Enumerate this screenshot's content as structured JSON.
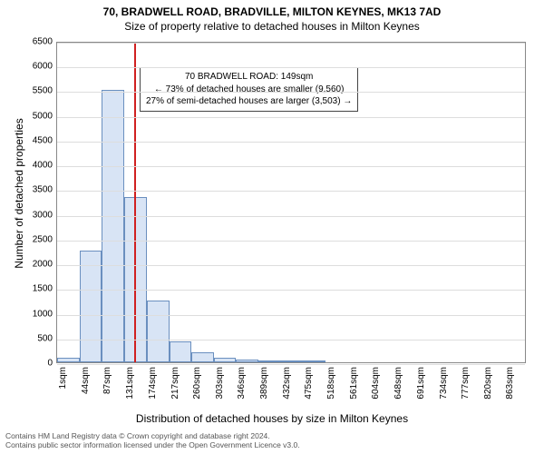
{
  "chart": {
    "type": "histogram",
    "title_line1": "70, BRADWELL ROAD, BRADVILLE, MILTON KEYNES, MK13 7AD",
    "title_line2": "Size of property relative to detached houses in Milton Keynes",
    "title_fontsize": 12,
    "xlabel": "Distribution of detached houses by size in Milton Keynes",
    "ylabel": "Number of detached properties",
    "label_fontsize": 12,
    "tick_fontsize": 10,
    "background_color": "#ffffff",
    "plot_border_color": "#888888",
    "grid_color": "#dddddd",
    "bar_fill": "#d8e4f5",
    "bar_border": "#6a8fbf",
    "marker_color": "#d02020",
    "ylim": [
      0,
      6500
    ],
    "ytick_step": 500,
    "yticks": [
      0,
      500,
      1000,
      1500,
      2000,
      2500,
      3000,
      3500,
      4000,
      4500,
      5000,
      5500,
      6000,
      6500
    ],
    "xticks": [
      "1sqm",
      "44sqm",
      "87sqm",
      "131sqm",
      "174sqm",
      "217sqm",
      "260sqm",
      "303sqm",
      "346sqm",
      "389sqm",
      "432sqm",
      "475sqm",
      "518sqm",
      "561sqm",
      "604sqm",
      "648sqm",
      "691sqm",
      "734sqm",
      "777sqm",
      "820sqm",
      "863sqm"
    ],
    "xrange_sqm": [
      1,
      906
    ],
    "bar_width_sqm": 43,
    "bars": [
      {
        "x_sqm": 1,
        "count": 100
      },
      {
        "x_sqm": 44,
        "count": 2250
      },
      {
        "x_sqm": 87,
        "count": 5500
      },
      {
        "x_sqm": 131,
        "count": 3350
      },
      {
        "x_sqm": 174,
        "count": 1250
      },
      {
        "x_sqm": 217,
        "count": 420
      },
      {
        "x_sqm": 260,
        "count": 200
      },
      {
        "x_sqm": 303,
        "count": 90
      },
      {
        "x_sqm": 346,
        "count": 60
      },
      {
        "x_sqm": 389,
        "count": 30
      },
      {
        "x_sqm": 432,
        "count": 30
      },
      {
        "x_sqm": 475,
        "count": 30
      },
      {
        "x_sqm": 518,
        "count": 0
      },
      {
        "x_sqm": 561,
        "count": 0
      },
      {
        "x_sqm": 604,
        "count": 0
      },
      {
        "x_sqm": 648,
        "count": 0
      },
      {
        "x_sqm": 691,
        "count": 0
      },
      {
        "x_sqm": 734,
        "count": 0
      },
      {
        "x_sqm": 777,
        "count": 0
      },
      {
        "x_sqm": 820,
        "count": 0
      },
      {
        "x_sqm": 863,
        "count": 0
      }
    ],
    "marker_x_sqm": 149,
    "annotation": {
      "line1": "70 BRADWELL ROAD: 149sqm",
      "line2": "← 73% of detached houses are smaller (9,560)",
      "line3": "27% of semi-detached houses are larger (3,503) →",
      "box_border": "#444444",
      "box_bg": "rgba(255,255,255,0.92)",
      "fontsize": 10,
      "pos_x_sqm": 160,
      "pos_y_count": 6000
    }
  },
  "footer": {
    "line1": "Contains HM Land Registry data © Crown copyright and database right 2024.",
    "line2": "Contains public sector information licensed under the Open Government Licence v3.0.",
    "fontsize": 8.5,
    "color": "#555555"
  }
}
